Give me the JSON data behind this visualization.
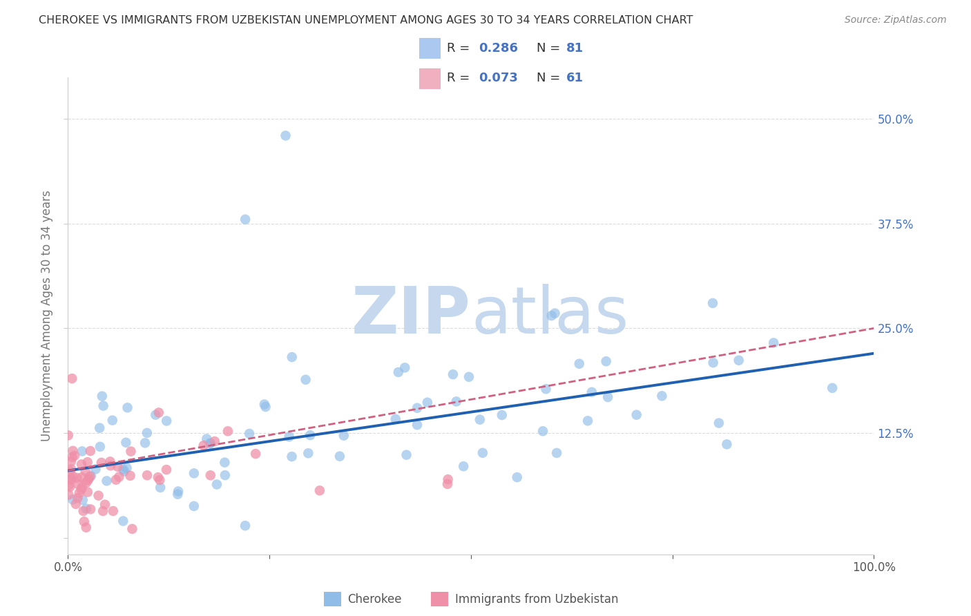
{
  "title": "CHEROKEE VS IMMIGRANTS FROM UZBEKISTAN UNEMPLOYMENT AMONG AGES 30 TO 34 YEARS CORRELATION CHART",
  "source": "Source: ZipAtlas.com",
  "ylabel": "Unemployment Among Ages 30 to 34 years",
  "xlim": [
    0,
    100
  ],
  "ylim": [
    -2,
    55
  ],
  "xtick_vals": [
    0,
    25,
    50,
    75,
    100
  ],
  "xticklabels": [
    "0.0%",
    "",
    "",
    "",
    "100.0%"
  ],
  "ytick_vals": [
    0,
    12.5,
    25.0,
    37.5,
    50.0
  ],
  "yticklabels": [
    "",
    "12.5%",
    "25.0%",
    "37.5%",
    "50.0%"
  ],
  "cherokee_color": "#90bce8",
  "uzbekistan_color": "#f090a8",
  "cherokee_line_color": "#2060b0",
  "uzbekistan_line_color": "#d06080",
  "watermark_zip": "ZIP",
  "watermark_atlas": "atlas",
  "watermark_color": "#c5d8ee",
  "background_color": "#ffffff",
  "grid_color": "#cccccc",
  "legend_box_color": "#f0f4fa",
  "legend_border_color": "#c0c8d8",
  "cherokee_R": "0.286",
  "cherokee_N": "81",
  "uzbekistan_R": "0.073",
  "uzbekistan_N": "61",
  "r_label_color": "#333333",
  "r_value_color": "#4472c4",
  "cherokee_legend_color": "#aac8f0",
  "uzbekistan_legend_color": "#f0b0c0",
  "bottom_label_color": "#555555",
  "title_color": "#333333",
  "source_color": "#888888",
  "ylabel_color": "#777777"
}
